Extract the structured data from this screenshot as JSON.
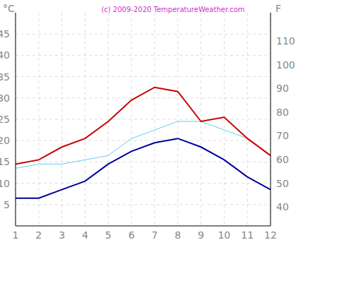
{
  "chart_data": {
    "type": "line",
    "title": "(c) 2009-2020 TemperatureWeather.com",
    "y_label": "°C",
    "y2_label": "F",
    "x": [
      1,
      2,
      3,
      4,
      5,
      6,
      7,
      8,
      9,
      10,
      11,
      12
    ],
    "xlim": [
      1,
      12
    ],
    "xticks": [
      1,
      2,
      3,
      4,
      5,
      6,
      7,
      8,
      9,
      10,
      11,
      12
    ],
    "ylim": [
      0,
      50
    ],
    "yticks": [
      5,
      10,
      15,
      20,
      25,
      30,
      35,
      40,
      45
    ],
    "y2lim": [
      32,
      122
    ],
    "y2ticks": [
      40,
      50,
      60,
      70,
      80,
      90,
      100,
      110
    ],
    "grid": true,
    "series": [
      {
        "color": "#66ccee",
        "values": [
          13.5,
          14.5,
          14.5,
          15.5,
          16.5,
          20.5,
          22.5,
          24.5,
          24.5,
          22.5,
          20.5,
          16.5
        ]
      },
      {
        "color": "#000099",
        "values": [
          6.5,
          6.5,
          8.5,
          10.5,
          14.5,
          17.5,
          19.5,
          20.5,
          18.5,
          15.5,
          11.5,
          8.5
        ]
      },
      {
        "color": "#cc0000",
        "values": [
          14.5,
          15.5,
          18.5,
          20.5,
          24.5,
          29.5,
          32.5,
          31.5,
          24.5,
          25.5,
          20.5,
          16.5
        ]
      }
    ]
  }
}
